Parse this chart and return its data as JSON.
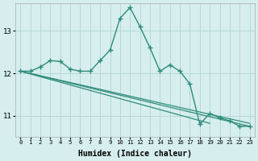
{
  "xlabel": "Humidex (Indice chaleur)",
  "background_color": "#d6eeee",
  "grid_color": "#b8d8d8",
  "line_color": "#2e8b7a",
  "xlim": [
    -0.5,
    23.5
  ],
  "ylim": [
    10.5,
    13.65
  ],
  "yticks": [
    11,
    12,
    13
  ],
  "xticks": [
    0,
    1,
    2,
    3,
    4,
    5,
    6,
    7,
    8,
    9,
    10,
    11,
    12,
    13,
    14,
    15,
    16,
    17,
    18,
    19,
    20,
    21,
    22,
    23
  ],
  "main_x": [
    0,
    1,
    2,
    3,
    4,
    5,
    6,
    7,
    8,
    9,
    10,
    11,
    12,
    13,
    14,
    15,
    16,
    17,
    18,
    19,
    20,
    21,
    22,
    23
  ],
  "main_y": [
    12.05,
    12.05,
    12.15,
    12.3,
    12.28,
    12.1,
    12.05,
    12.05,
    12.3,
    12.55,
    13.3,
    13.55,
    13.1,
    12.6,
    12.05,
    12.2,
    12.05,
    11.75,
    10.8,
    11.05,
    10.95,
    10.88,
    10.75,
    10.75
  ],
  "trend_lines": [
    {
      "x": [
        0,
        23
      ],
      "y": [
        12.05,
        10.75
      ]
    },
    {
      "x": [
        0,
        19
      ],
      "y": [
        12.05,
        10.82
      ]
    },
    {
      "x": [
        0,
        23
      ],
      "y": [
        12.05,
        10.82
      ]
    }
  ]
}
